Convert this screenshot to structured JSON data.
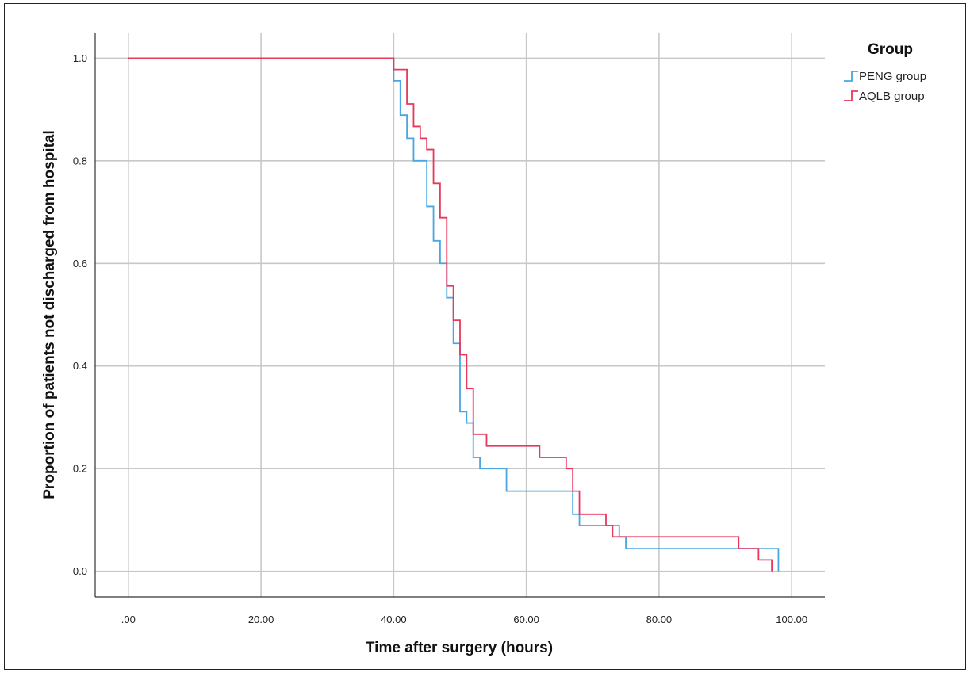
{
  "chart_data": {
    "type": "line",
    "step": true,
    "xlabel": "Time after surgery (hours)",
    "ylabel": "Proportion of patients not discharged from hospital",
    "xlim": [
      -5,
      105
    ],
    "ylim": [
      -0.05,
      1.05
    ],
    "x_ticks": [
      {
        "value": 0,
        "label": ".00"
      },
      {
        "value": 20,
        "label": "20.00"
      },
      {
        "value": 40,
        "label": "40.00"
      },
      {
        "value": 60,
        "label": "60.00"
      },
      {
        "value": 80,
        "label": "80.00"
      },
      {
        "value": 100,
        "label": "100.00"
      }
    ],
    "y_ticks": [
      {
        "value": 0,
        "label": "0.0"
      },
      {
        "value": 0.2,
        "label": "0.2"
      },
      {
        "value": 0.4,
        "label": "0.4"
      },
      {
        "value": 0.6,
        "label": "0.6"
      },
      {
        "value": 0.8,
        "label": "0.8"
      },
      {
        "value": 1.0,
        "label": "1.0"
      }
    ],
    "grid": true,
    "legend": {
      "title": "Group",
      "position": "right"
    },
    "series": [
      {
        "name": "PENG group",
        "color": "#4aa6e0",
        "points": [
          [
            0,
            1.0
          ],
          [
            40,
            1.0
          ],
          [
            40,
            0.956
          ],
          [
            41,
            0.956
          ],
          [
            41,
            0.889
          ],
          [
            42,
            0.889
          ],
          [
            42,
            0.844
          ],
          [
            43,
            0.844
          ],
          [
            43,
            0.8
          ],
          [
            45,
            0.8
          ],
          [
            45,
            0.711
          ],
          [
            46,
            0.711
          ],
          [
            46,
            0.644
          ],
          [
            47,
            0.644
          ],
          [
            47,
            0.6
          ],
          [
            48,
            0.6
          ],
          [
            48,
            0.533
          ],
          [
            49,
            0.533
          ],
          [
            49,
            0.444
          ],
          [
            50,
            0.444
          ],
          [
            50,
            0.311
          ],
          [
            51,
            0.311
          ],
          [
            51,
            0.289
          ],
          [
            52,
            0.289
          ],
          [
            52,
            0.222
          ],
          [
            53,
            0.222
          ],
          [
            53,
            0.2
          ],
          [
            57,
            0.2
          ],
          [
            57,
            0.156
          ],
          [
            67,
            0.156
          ],
          [
            67,
            0.111
          ],
          [
            68,
            0.111
          ],
          [
            68,
            0.089
          ],
          [
            74,
            0.089
          ],
          [
            74,
            0.067
          ],
          [
            75,
            0.067
          ],
          [
            75,
            0.044
          ],
          [
            98,
            0.044
          ],
          [
            98,
            0.0
          ]
        ]
      },
      {
        "name": "AQLB group",
        "color": "#e8385c",
        "points": [
          [
            0,
            1.0
          ],
          [
            40,
            1.0
          ],
          [
            40,
            0.978
          ],
          [
            42,
            0.978
          ],
          [
            42,
            0.911
          ],
          [
            43,
            0.911
          ],
          [
            43,
            0.867
          ],
          [
            44,
            0.867
          ],
          [
            44,
            0.844
          ],
          [
            45,
            0.844
          ],
          [
            45,
            0.822
          ],
          [
            46,
            0.822
          ],
          [
            46,
            0.756
          ],
          [
            47,
            0.756
          ],
          [
            47,
            0.689
          ],
          [
            48,
            0.689
          ],
          [
            48,
            0.556
          ],
          [
            49,
            0.556
          ],
          [
            49,
            0.489
          ],
          [
            50,
            0.489
          ],
          [
            50,
            0.422
          ],
          [
            51,
            0.422
          ],
          [
            51,
            0.356
          ],
          [
            52,
            0.356
          ],
          [
            52,
            0.267
          ],
          [
            54,
            0.267
          ],
          [
            54,
            0.244
          ],
          [
            62,
            0.244
          ],
          [
            62,
            0.222
          ],
          [
            66,
            0.222
          ],
          [
            66,
            0.2
          ],
          [
            67,
            0.2
          ],
          [
            67,
            0.156
          ],
          [
            68,
            0.156
          ],
          [
            68,
            0.111
          ],
          [
            72,
            0.111
          ],
          [
            72,
            0.089
          ],
          [
            73,
            0.089
          ],
          [
            73,
            0.067
          ],
          [
            92,
            0.067
          ],
          [
            92,
            0.044
          ],
          [
            95,
            0.044
          ],
          [
            95,
            0.022
          ],
          [
            97,
            0.022
          ],
          [
            97,
            0.0
          ]
        ]
      }
    ]
  }
}
